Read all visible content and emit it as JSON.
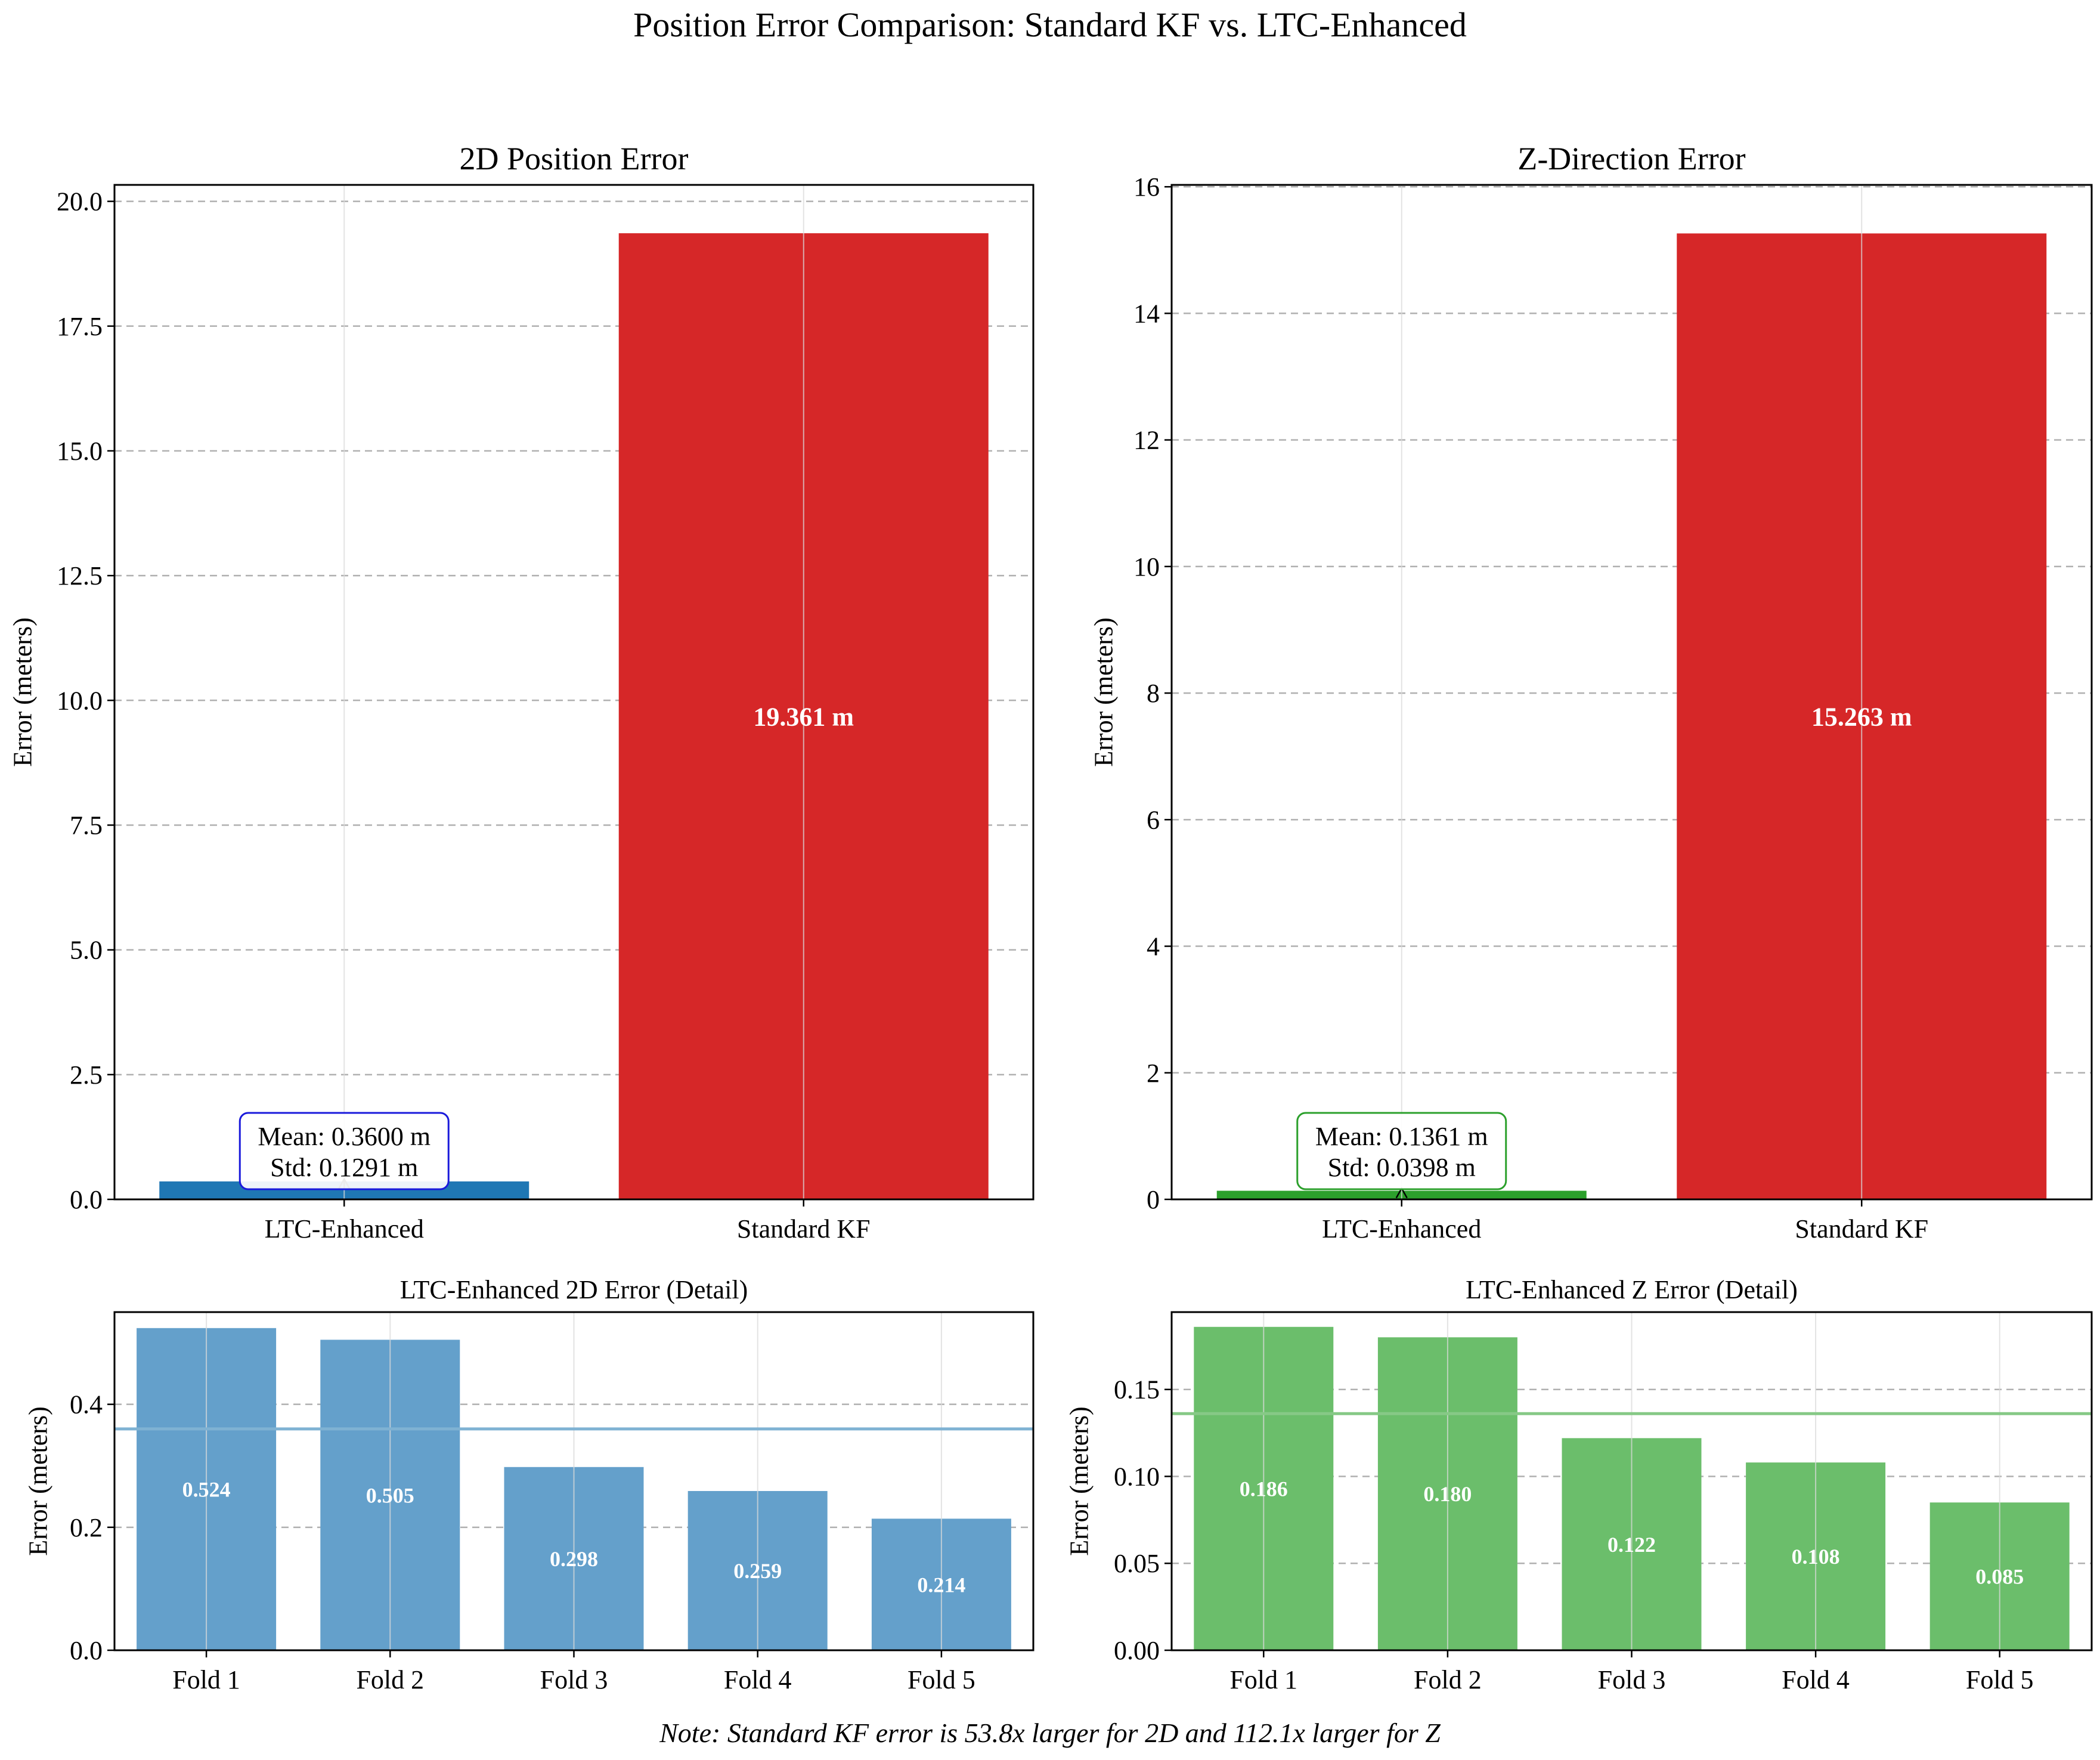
{
  "title": "Position Error Comparison: Standard KF vs. LTC-Enhanced",
  "footnote": "Note: Standard KF error is 53.8x larger for 2D and 112.1x larger for Z",
  "chart_data": [
    {
      "id": "top-left",
      "type": "bar",
      "title": "2D Position Error",
      "xlabel": "",
      "ylabel": "Error (meters)",
      "categories": [
        "LTC-Enhanced",
        "Standard KF"
      ],
      "values": [
        0.36,
        19.361
      ],
      "colors": [
        "#1f77b4",
        "#d62728"
      ],
      "ylim": [
        0,
        20.33
      ],
      "yticks": [
        0,
        2.5,
        5,
        7.5,
        10,
        12.5,
        15,
        17.5,
        20
      ],
      "ytick_labels": [
        "0.0",
        "2.5",
        "5.0",
        "7.5",
        "10.0",
        "12.5",
        "15.0",
        "17.5",
        "20.0"
      ],
      "grid": "dashed",
      "bar_labels": [
        "",
        "19.361 m"
      ],
      "annotation": {
        "lines": [
          "Mean: 0.3600 m",
          "Std: 0.1291 m"
        ],
        "edge_color": "#1a1adb",
        "category_index": 0
      }
    },
    {
      "id": "top-right",
      "type": "bar",
      "title": "Z-Direction Error",
      "xlabel": "",
      "ylabel": "Error (meters)",
      "categories": [
        "LTC-Enhanced",
        "Standard KF"
      ],
      "values": [
        0.1361,
        15.263
      ],
      "colors": [
        "#2ca02c",
        "#d62728"
      ],
      "ylim": [
        0,
        16.03
      ],
      "yticks": [
        0,
        2,
        4,
        6,
        8,
        10,
        12,
        14,
        16
      ],
      "ytick_labels": [
        "0",
        "2",
        "4",
        "6",
        "8",
        "10",
        "12",
        "14",
        "16"
      ],
      "grid": "dashed",
      "bar_labels": [
        "",
        "15.263 m"
      ],
      "annotation": {
        "lines": [
          "Mean: 0.1361 m",
          "Std: 0.0398 m"
        ],
        "edge_color": "#2ca02c",
        "category_index": 0
      }
    },
    {
      "id": "bottom-left",
      "type": "bar",
      "title": "LTC-Enhanced 2D Error (Detail)",
      "xlabel": "",
      "ylabel": "Error (meters)",
      "categories": [
        "Fold 1",
        "Fold 2",
        "Fold 3",
        "Fold 4",
        "Fold 5"
      ],
      "values": [
        0.524,
        0.505,
        0.298,
        0.259,
        0.214
      ],
      "colors": [
        "#64a0cb"
      ],
      "mean_line": 0.36,
      "mean_line_color": "#7fb2d3",
      "ylim": [
        0,
        0.55
      ],
      "yticks": [
        0,
        0.2,
        0.4
      ],
      "ytick_labels": [
        "0.0",
        "0.2",
        "0.4"
      ],
      "grid": "dashed",
      "bar_labels": [
        "0.524",
        "0.505",
        "0.298",
        "0.259",
        "0.214"
      ]
    },
    {
      "id": "bottom-right",
      "type": "bar",
      "title": "LTC-Enhanced Z Error (Detail)",
      "xlabel": "",
      "ylabel": "Error (meters)",
      "categories": [
        "Fold 1",
        "Fold 2",
        "Fold 3",
        "Fold 4",
        "Fold 5"
      ],
      "values": [
        0.186,
        0.18,
        0.122,
        0.108,
        0.085
      ],
      "colors": [
        "#6bbe6b"
      ],
      "mean_line": 0.1361,
      "mean_line_color": "#86c986",
      "ylim": [
        0,
        0.1945
      ],
      "yticks": [
        0,
        0.05,
        0.1,
        0.15
      ],
      "ytick_labels": [
        "0.00",
        "0.05",
        "0.10",
        "0.15"
      ],
      "grid": "dashed",
      "bar_labels": [
        "0.186",
        "0.180",
        "0.122",
        "0.108",
        "0.085"
      ]
    }
  ]
}
